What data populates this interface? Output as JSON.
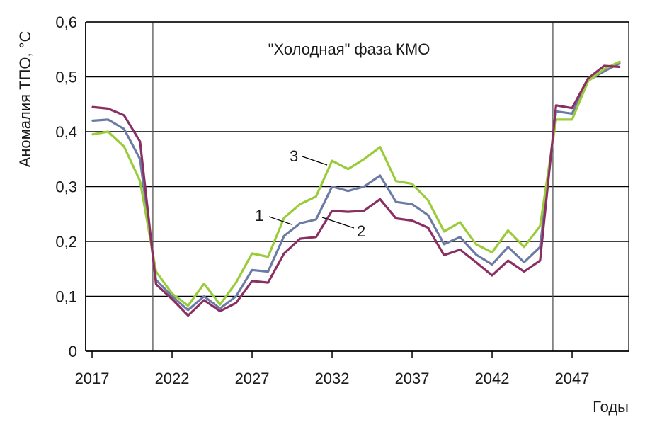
{
  "chart_data": {
    "type": "line",
    "title": "",
    "xlabel": "Годы",
    "ylabel": "Аномалия ТПО, °С",
    "xlim": [
      2017,
      2050
    ],
    "ylim": [
      0,
      0.6
    ],
    "grid": true,
    "x_ticks": [
      2017,
      2022,
      2027,
      2032,
      2037,
      2042,
      2047
    ],
    "y_ticks": [
      {
        "value": 0,
        "label": "0"
      },
      {
        "value": 0.1,
        "label": "0,1"
      },
      {
        "value": 0.2,
        "label": "0,2"
      },
      {
        "value": 0.3,
        "label": "0,3"
      },
      {
        "value": 0.4,
        "label": "0,4"
      },
      {
        "value": 0.5,
        "label": "0,5"
      },
      {
        "value": 0.6,
        "label": "0,6"
      }
    ],
    "x": [
      2017,
      2018,
      2019,
      2020,
      2021,
      2022,
      2023,
      2024,
      2025,
      2026,
      2027,
      2028,
      2029,
      2030,
      2031,
      2032,
      2033,
      2034,
      2035,
      2036,
      2037,
      2038,
      2039,
      2040,
      2041,
      2042,
      2043,
      2044,
      2045,
      2046,
      2047,
      2048,
      2049,
      2050
    ],
    "series": [
      {
        "name": "1",
        "color": "#6c7ba5",
        "values": [
          0.42,
          0.422,
          0.405,
          0.35,
          0.13,
          0.1,
          0.075,
          0.1,
          0.078,
          0.1,
          0.148,
          0.145,
          0.21,
          0.233,
          0.24,
          0.3,
          0.292,
          0.3,
          0.32,
          0.272,
          0.268,
          0.248,
          0.195,
          0.208,
          0.176,
          0.158,
          0.19,
          0.162,
          0.19,
          0.437,
          0.433,
          0.493,
          0.51,
          0.525
        ]
      },
      {
        "name": "2",
        "color": "#8b2f62",
        "values": [
          0.445,
          0.442,
          0.43,
          0.382,
          0.122,
          0.095,
          0.065,
          0.093,
          0.073,
          0.088,
          0.128,
          0.125,
          0.178,
          0.205,
          0.208,
          0.256,
          0.254,
          0.256,
          0.277,
          0.242,
          0.238,
          0.225,
          0.175,
          0.185,
          0.162,
          0.138,
          0.165,
          0.145,
          0.165,
          0.448,
          0.443,
          0.497,
          0.52,
          0.518
        ]
      },
      {
        "name": "3",
        "color": "#9acc3a",
        "values": [
          0.395,
          0.4,
          0.373,
          0.31,
          0.145,
          0.105,
          0.083,
          0.123,
          0.085,
          0.125,
          0.178,
          0.172,
          0.243,
          0.268,
          0.282,
          0.347,
          0.332,
          0.35,
          0.372,
          0.31,
          0.305,
          0.275,
          0.218,
          0.235,
          0.195,
          0.18,
          0.22,
          0.19,
          0.228,
          0.422,
          0.422,
          0.492,
          0.514,
          0.528
        ]
      }
    ],
    "phase_lines": [
      2020.8,
      2045.8
    ],
    "annotations": [
      {
        "text": "\"Холодная\" фаза КМО"
      },
      {
        "text": "1",
        "series": "1"
      },
      {
        "text": "2",
        "series": "2"
      },
      {
        "text": "3",
        "series": "3"
      }
    ]
  }
}
